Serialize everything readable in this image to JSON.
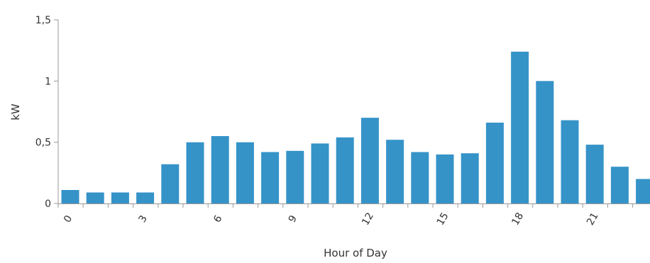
{
  "colors": {
    "bar": "#3593c8",
    "axis": "#999999",
    "text": "#333333"
  },
  "chart_data": {
    "type": "bar",
    "xlabel": "Hour of Day",
    "ylabel": "kW",
    "ylim": [
      0,
      1.5
    ],
    "y_ticks": [
      {
        "value": 0,
        "label": "0"
      },
      {
        "value": 0.5,
        "label": "0,5"
      },
      {
        "value": 1,
        "label": "1"
      },
      {
        "value": 1.5,
        "label": "1,5"
      }
    ],
    "x_tick_labels": [
      {
        "hour": 0,
        "label": "0"
      },
      {
        "hour": 3,
        "label": "3"
      },
      {
        "hour": 6,
        "label": "6"
      },
      {
        "hour": 9,
        "label": "9"
      },
      {
        "hour": 12,
        "label": "12"
      },
      {
        "hour": 15,
        "label": "15"
      },
      {
        "hour": 18,
        "label": "18"
      },
      {
        "hour": 21,
        "label": "21"
      }
    ],
    "categories": [
      0,
      1,
      2,
      3,
      4,
      5,
      6,
      7,
      8,
      9,
      10,
      11,
      12,
      13,
      14,
      15,
      16,
      17,
      18,
      19,
      20,
      21,
      22,
      23
    ],
    "values": [
      0.11,
      0.09,
      0.09,
      0.09,
      0.32,
      0.5,
      0.55,
      0.5,
      0.42,
      0.43,
      0.49,
      0.54,
      0.7,
      0.52,
      0.42,
      0.4,
      0.41,
      0.66,
      1.24,
      1.0,
      0.68,
      0.48,
      0.3,
      0.2
    ],
    "grid": false,
    "legend": "none"
  }
}
